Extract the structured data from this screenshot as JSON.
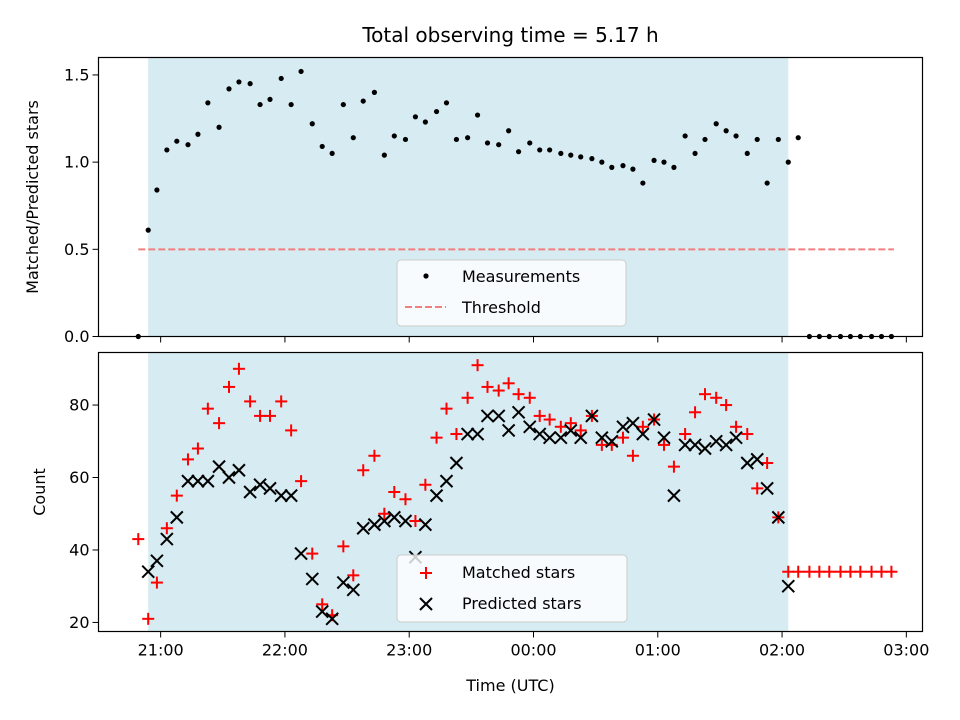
{
  "chart_data": {
    "type": "scatter",
    "title": "Total observing time = 5.17 h",
    "xlabel": "Time (UTC)",
    "x_tick_labels": [
      "21:00",
      "22:00",
      "23:00",
      "00:00",
      "01:00",
      "02:00",
      "03:00"
    ],
    "x_ticks_hours": [
      21,
      22,
      23,
      24,
      25,
      26,
      27
    ],
    "xlim_hours": [
      20.5,
      27.13
    ],
    "observing_window_hours": [
      20.9,
      26.05
    ],
    "colors": {
      "observing_window": "#add8e6",
      "measurements": "#000000",
      "threshold": "#f08080",
      "matched": "#ff0000",
      "predicted": "#000000"
    },
    "panels": [
      {
        "ylabel": "Matched/Predicted stars",
        "ylim": [
          0,
          1.6
        ],
        "y_ticks": [
          0.0,
          0.5,
          1.0,
          1.5
        ],
        "y_tick_labels": [
          "0.0",
          "0.5",
          "1.0",
          "1.5"
        ],
        "legend": {
          "placement": "lower center",
          "entries": [
            "Measurements",
            "Threshold"
          ]
        },
        "threshold": {
          "name": "Threshold",
          "y": 0.5,
          "x_range_hours": [
            20.82,
            27.82
          ]
        },
        "series": [
          {
            "name": "Measurements",
            "marker": "dot",
            "x": [
              20.82,
              20.9,
              20.97,
              21.05,
              21.13,
              21.22,
              21.3,
              21.38,
              21.47,
              21.55,
              21.63,
              21.72,
              21.8,
              21.88,
              21.97,
              22.05,
              22.13,
              22.22,
              22.3,
              22.38,
              22.47,
              22.55,
              22.63,
              22.72,
              22.8,
              22.88,
              22.97,
              23.05,
              23.13,
              23.22,
              23.3,
              23.38,
              23.47,
              23.55,
              23.63,
              23.72,
              23.8,
              23.88,
              23.97,
              24.05,
              24.13,
              24.22,
              24.3,
              24.38,
              24.47,
              24.55,
              24.63,
              24.72,
              24.8,
              24.88,
              24.97,
              25.05,
              25.13,
              25.22,
              25.3,
              25.38,
              25.47,
              25.55,
              25.63,
              25.72,
              25.8,
              25.88,
              25.97,
              26.05,
              26.13,
              26.22,
              26.3,
              26.38,
              26.47,
              26.55,
              26.63,
              26.72,
              26.8,
              26.88
            ],
            "y": [
              0.0,
              0.61,
              0.84,
              1.07,
              1.12,
              1.1,
              1.16,
              1.34,
              1.2,
              1.42,
              1.46,
              1.45,
              1.33,
              1.36,
              1.48,
              1.33,
              1.52,
              1.22,
              1.09,
              1.05,
              1.33,
              1.14,
              1.35,
              1.4,
              1.04,
              1.15,
              1.13,
              1.26,
              1.23,
              1.29,
              1.34,
              1.13,
              1.14,
              1.27,
              1.11,
              1.1,
              1.18,
              1.06,
              1.11,
              1.07,
              1.07,
              1.05,
              1.04,
              1.03,
              1.02,
              1.0,
              0.97,
              0.98,
              0.96,
              0.88,
              1.01,
              1.0,
              0.97,
              1.15,
              1.05,
              1.13,
              1.22,
              1.18,
              1.15,
              1.05,
              1.13,
              0.88,
              1.13,
              1.0,
              1.14,
              0.0,
              0.0,
              0.0,
              0.0,
              0.0,
              0.0,
              0.0,
              0.0,
              0.0
            ]
          }
        ]
      },
      {
        "ylabel": "Count",
        "ylim": [
          17.5,
          94.5
        ],
        "y_ticks": [
          20,
          40,
          60,
          80
        ],
        "y_tick_labels": [
          "20",
          "40",
          "60",
          "80"
        ],
        "legend": {
          "placement": "lower center",
          "entries": [
            "Matched stars",
            "Predicted stars"
          ]
        },
        "series": [
          {
            "name": "Matched stars",
            "marker": "plus",
            "x": [
              20.82,
              20.9,
              20.97,
              21.05,
              21.13,
              21.22,
              21.3,
              21.38,
              21.47,
              21.55,
              21.63,
              21.72,
              21.8,
              21.88,
              21.97,
              22.05,
              22.13,
              22.22,
              22.3,
              22.38,
              22.47,
              22.55,
              22.63,
              22.72,
              22.8,
              22.88,
              22.97,
              23.05,
              23.13,
              23.22,
              23.3,
              23.38,
              23.47,
              23.55,
              23.63,
              23.72,
              23.8,
              23.88,
              23.97,
              24.05,
              24.13,
              24.22,
              24.3,
              24.38,
              24.47,
              24.55,
              24.63,
              24.72,
              24.8,
              24.88,
              24.97,
              25.05,
              25.13,
              25.22,
              25.3,
              25.38,
              25.47,
              25.55,
              25.63,
              25.72,
              25.8,
              25.88,
              25.97,
              26.05,
              26.13,
              26.22,
              26.3,
              26.38,
              26.47,
              26.55,
              26.63,
              26.72,
              26.8,
              26.88
            ],
            "y": [
              43,
              21,
              31,
              46,
              55,
              65,
              68,
              79,
              75,
              85,
              90,
              81,
              77,
              77,
              81,
              73,
              59,
              39,
              25,
              22,
              41,
              33,
              62,
              66,
              50,
              56,
              54,
              48,
              58,
              71,
              79,
              72,
              82,
              91,
              85,
              84,
              86,
              83,
              82,
              77,
              76,
              74,
              75,
              73,
              77,
              69,
              69,
              71,
              66,
              74,
              76,
              69,
              63,
              72,
              78,
              83,
              82,
              80,
              74,
              72,
              57,
              64,
              49,
              34,
              34,
              34,
              34,
              34,
              34,
              34,
              34,
              34,
              34,
              34
            ]
          },
          {
            "name": "Predicted stars",
            "marker": "x",
            "x": [
              20.9,
              20.97,
              21.05,
              21.13,
              21.22,
              21.3,
              21.38,
              21.47,
              21.55,
              21.63,
              21.72,
              21.8,
              21.88,
              21.97,
              22.05,
              22.13,
              22.22,
              22.3,
              22.38,
              22.47,
              22.55,
              22.63,
              22.72,
              22.8,
              22.88,
              22.97,
              23.05,
              23.13,
              23.22,
              23.3,
              23.38,
              23.47,
              23.55,
              23.63,
              23.72,
              23.8,
              23.88,
              23.97,
              24.05,
              24.13,
              24.22,
              24.3,
              24.38,
              24.47,
              24.55,
              24.63,
              24.72,
              24.8,
              24.88,
              24.97,
              25.05,
              25.13,
              25.22,
              25.3,
              25.38,
              25.47,
              25.55,
              25.63,
              25.72,
              25.8,
              25.88,
              25.97,
              26.05
            ],
            "y": [
              34,
              37,
              43,
              49,
              59,
              59,
              59,
              63,
              60,
              62,
              56,
              58,
              57,
              55,
              55,
              39,
              32,
              23,
              21,
              31,
              29,
              46,
              47,
              48,
              49,
              48,
              38,
              47,
              55,
              59,
              64,
              72,
              72,
              77,
              77,
              73,
              78,
              74,
              72,
              71,
              71,
              73,
              71,
              77,
              71,
              70,
              74,
              75,
              72,
              76,
              71,
              55,
              69,
              69,
              68,
              70,
              69,
              71,
              64,
              65,
              57,
              49,
              30
            ]
          }
        ]
      }
    ]
  }
}
